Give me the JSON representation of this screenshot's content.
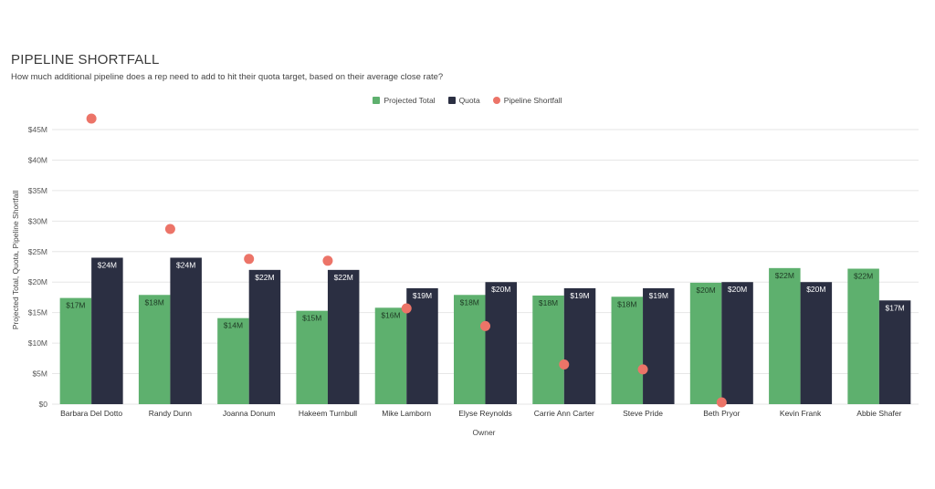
{
  "title": "PIPELINE SHORTFALL",
  "subtitle": "How much additional pipeline does a rep need to add to hit their quota target, based on their average close rate?",
  "legend": {
    "projected": "Projected Total",
    "quota": "Quota",
    "shortfall": "Pipeline Shortfall"
  },
  "colors": {
    "projected": "#5eb06e",
    "quota": "#2b2f42",
    "shortfall": "#ec7468",
    "grid": "#e6e6e6"
  },
  "chart_data": {
    "type": "bar",
    "title": "PIPELINE SHORTFALL",
    "xlabel": "Owner",
    "ylabel": "Projected Total, Quota, Pipeline Shortfall",
    "ylim": [
      0,
      45
    ],
    "yticks": [
      "$0",
      "$5M",
      "$10M",
      "$15M",
      "$20M",
      "$25M",
      "$30M",
      "$35M",
      "$40M",
      "$45M"
    ],
    "grid": true,
    "legend_position": "top-center",
    "categories": [
      "Barbara Del Dotto",
      "Randy Dunn",
      "Joanna Donum",
      "Hakeem Turnbull",
      "Mike Lamborn",
      "Elyse Reynolds",
      "Carrie Ann Carter",
      "Steve Pride",
      "Beth Pryor",
      "Kevin Frank",
      "Abbie Shafer"
    ],
    "series": [
      {
        "name": "Projected Total",
        "type": "bar",
        "values": [
          17.4,
          17.9,
          14.1,
          15.3,
          15.8,
          17.9,
          17.8,
          17.6,
          19.9,
          22.3,
          22.2
        ],
        "labels": [
          "$17M",
          "$18M",
          "$14M",
          "$15M",
          "$16M",
          "$18M",
          "$18M",
          "$18M",
          "$20M",
          "$22M",
          "$22M"
        ]
      },
      {
        "name": "Quota",
        "type": "bar",
        "values": [
          24,
          24,
          22,
          22,
          19,
          20,
          19,
          19,
          20,
          20,
          17
        ],
        "labels": [
          "$24M",
          "$24M",
          "$22M",
          "$22M",
          "$19M",
          "$20M",
          "$19M",
          "$19M",
          "$20M",
          "$20M",
          "$17M"
        ]
      },
      {
        "name": "Pipeline Shortfall",
        "type": "scatter",
        "values": [
          46.8,
          28.7,
          23.8,
          23.5,
          15.7,
          12.8,
          6.5,
          5.7,
          0.3,
          null,
          null
        ]
      }
    ]
  }
}
